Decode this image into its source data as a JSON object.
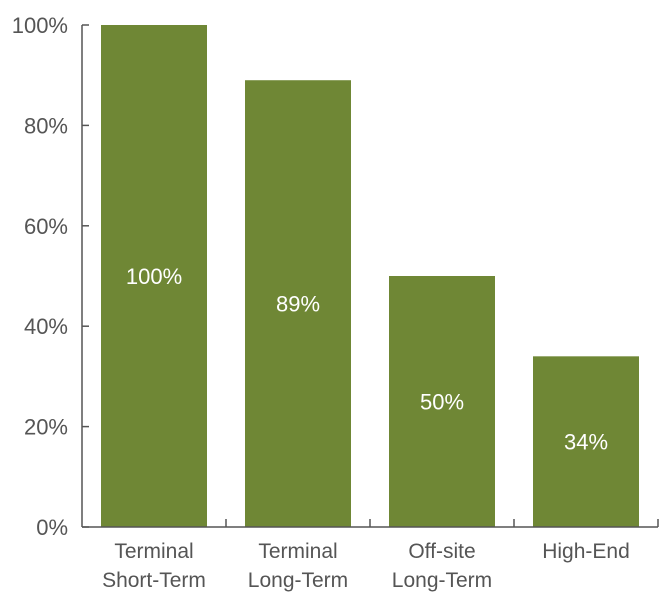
{
  "chart_data": {
    "type": "bar",
    "categories": [
      [
        "Terminal",
        "Short-Term"
      ],
      [
        "Terminal",
        "Long-Term"
      ],
      [
        "Off-site",
        "Long-Term"
      ],
      [
        "High-End"
      ]
    ],
    "values": [
      100,
      89,
      50,
      34
    ],
    "data_labels": [
      "100%",
      "89%",
      "50%",
      "34%"
    ],
    "title": "",
    "xlabel": "",
    "ylabel": "",
    "ylim": [
      0,
      100
    ],
    "y_ticks": [
      0,
      20,
      40,
      60,
      80,
      100
    ],
    "y_tick_labels": [
      "0%",
      "20%",
      "40%",
      "60%",
      "80%",
      "100%"
    ],
    "grid": false,
    "legend": "none",
    "bar_color": "#6f8735",
    "label_color": "#ffffff",
    "axis_color": "#555555"
  }
}
